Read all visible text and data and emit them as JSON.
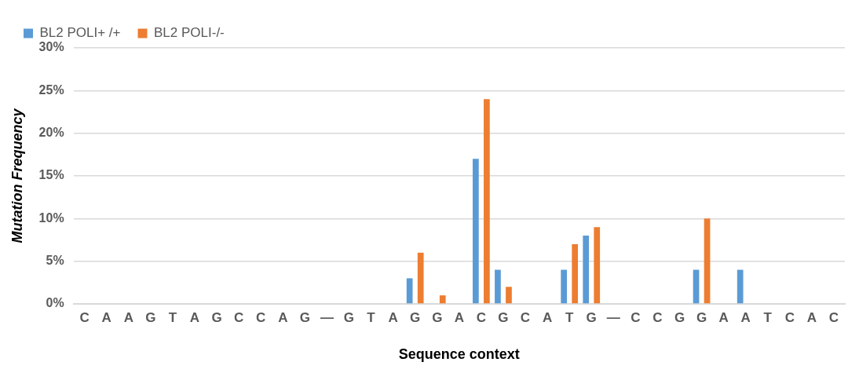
{
  "chart_data": {
    "type": "bar",
    "xlabel": "Sequence context",
    "ylabel": "Mutation Frequency",
    "categories": [
      "C",
      "A",
      "A",
      "G",
      "T",
      "A",
      "G",
      "C",
      "C",
      "A",
      "G",
      "—",
      "G",
      "T",
      "A",
      "G",
      "G",
      "A",
      "C",
      "G",
      "C",
      "A",
      "T",
      "G",
      "—",
      "C",
      "C",
      "G",
      "G",
      "A",
      "A",
      "T",
      "C",
      "A",
      "C"
    ],
    "series": [
      {
        "name": "BL2 POLI+ /+",
        "color": "#5b9bd5",
        "values": [
          0,
          0,
          0,
          0,
          0,
          0,
          0,
          0,
          0,
          0,
          0,
          0,
          0,
          0,
          0,
          3,
          0,
          0,
          17,
          4,
          0,
          0,
          4,
          8,
          0,
          0,
          0,
          0,
          4,
          0,
          4,
          0,
          0,
          0,
          0
        ]
      },
      {
        "name": "BL2 POLI-/-",
        "color": "#ed7d31",
        "values": [
          0,
          0,
          0,
          0,
          0,
          0,
          0,
          0,
          0,
          0,
          0,
          0,
          0,
          0,
          0,
          6,
          1,
          0,
          24,
          2,
          0,
          0,
          7,
          9,
          0,
          0,
          0,
          0,
          10,
          0,
          0,
          0,
          0,
          0,
          0
        ]
      }
    ],
    "ylim": [
      0,
      30
    ],
    "yticks": [
      {
        "value": 0,
        "label": "0%"
      },
      {
        "value": 5,
        "label": "5%"
      },
      {
        "value": 10,
        "label": "10%"
      },
      {
        "value": 15,
        "label": "15%"
      },
      {
        "value": 20,
        "label": "20%"
      },
      {
        "value": 25,
        "label": "25%"
      },
      {
        "value": 30,
        "label": "30%"
      }
    ],
    "grid": "y",
    "legend": "top left"
  }
}
